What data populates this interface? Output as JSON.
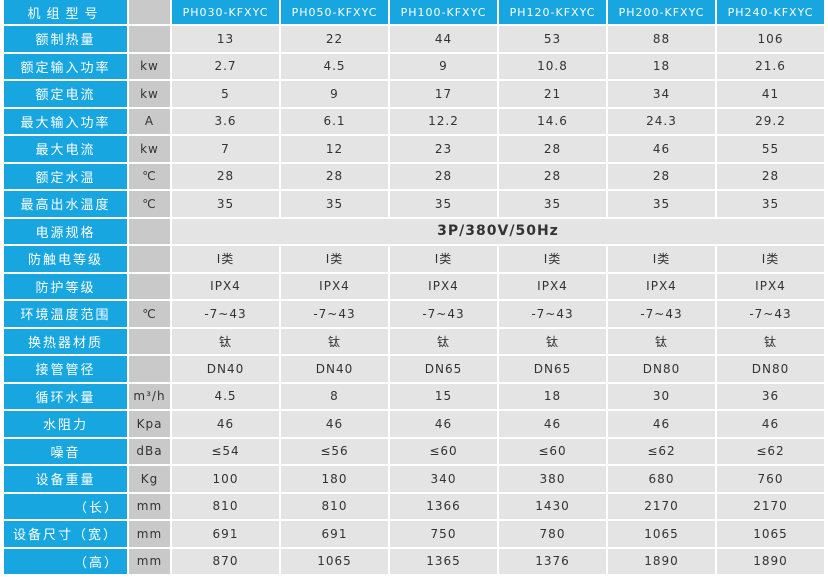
{
  "colors": {
    "header_blue": "#18a6e0",
    "unit_gray": "#c9c9c9",
    "cell_gray": "#e4e4e4"
  },
  "header": {
    "label": "机组型号",
    "unit": "",
    "models": [
      "PH030-KFXYC",
      "PH050-KFXYC",
      "PH100-KFXYC",
      "PH120-KFXYC",
      "PH200-KFXYC",
      "PH240-KFXYC"
    ]
  },
  "rows": [
    {
      "label": "额制热量",
      "unit": "",
      "values": [
        "13",
        "22",
        "44",
        "53",
        "88",
        "106"
      ]
    },
    {
      "label": "额定输入功率",
      "unit": "kw",
      "values": [
        "2.7",
        "4.5",
        "9",
        "10.8",
        "18",
        "21.6"
      ]
    },
    {
      "label": "额定电流",
      "unit": "kw",
      "values": [
        "5",
        "9",
        "17",
        "21",
        "34",
        "41"
      ]
    },
    {
      "label": "最大输入功率",
      "unit": "A",
      "values": [
        "3.6",
        "6.1",
        "12.2",
        "14.6",
        "24.3",
        "29.2"
      ]
    },
    {
      "label": "最大电流",
      "unit": "kw",
      "values": [
        "7",
        "12",
        "23",
        "28",
        "46",
        "55"
      ]
    },
    {
      "label": "额定水温",
      "unit": "℃",
      "values": [
        "28",
        "28",
        "28",
        "28",
        "28",
        "28"
      ]
    },
    {
      "label": "最高出水温度",
      "unit": "℃",
      "values": [
        "35",
        "35",
        "35",
        "35",
        "35",
        "35"
      ]
    },
    {
      "label": "电源规格",
      "unit": "",
      "span": "3P/380V/50Hz"
    },
    {
      "label": "防触电等级",
      "unit": "",
      "values": [
        "Ⅰ类",
        "Ⅰ类",
        "Ⅰ类",
        "Ⅰ类",
        "Ⅰ类",
        "Ⅰ类"
      ]
    },
    {
      "label": "防护等级",
      "unit": "",
      "values": [
        "IPX4",
        "IPX4",
        "IPX4",
        "IPX4",
        "IPX4",
        "IPX4"
      ]
    },
    {
      "label": "环境温度范围",
      "unit": "℃",
      "values": [
        "-7~43",
        "-7~43",
        "-7~43",
        "-7~43",
        "-7~43",
        "-7~43"
      ]
    },
    {
      "label": "换热器材质",
      "unit": "",
      "values": [
        "钛",
        "钛",
        "钛",
        "钛",
        "钛",
        "钛"
      ]
    },
    {
      "label": "接管管径",
      "unit": "",
      "values": [
        "DN40",
        "DN40",
        "DN65",
        "DN65",
        "DN80",
        "DN80"
      ]
    },
    {
      "label": "循环水量",
      "unit": "m³/h",
      "values": [
        "4.5",
        "8",
        "15",
        "18",
        "30",
        "36"
      ]
    },
    {
      "label": "水阻力",
      "unit": "Kpa",
      "values": [
        "46",
        "46",
        "46",
        "46",
        "46",
        "46"
      ]
    },
    {
      "label": "噪音",
      "unit": "dBa",
      "values": [
        "≤54",
        "≤56",
        "≤60",
        "≤60",
        "≤62",
        "≤62"
      ]
    },
    {
      "label": "设备重量",
      "unit": "Kg",
      "values": [
        "100",
        "180",
        "340",
        "380",
        "680",
        "760"
      ]
    },
    {
      "label": "（长）",
      "unit": "mm",
      "sub": true,
      "values": [
        "810",
        "810",
        "1366",
        "1430",
        "2170",
        "2170"
      ]
    },
    {
      "label": "设备尺寸（宽）",
      "unit": "mm",
      "values": [
        "691",
        "691",
        "750",
        "780",
        "1065",
        "1065"
      ]
    },
    {
      "label": "（高）",
      "unit": "mm",
      "sub": true,
      "values": [
        "870",
        "1065",
        "1365",
        "1376",
        "1890",
        "1890"
      ]
    }
  ]
}
